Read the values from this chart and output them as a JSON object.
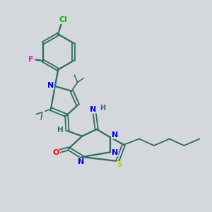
{
  "bg_color": "#d4d8dd",
  "atom_colors": {
    "C": "#2d6b5e",
    "N": "#0000ee",
    "O": "#ff0000",
    "S": "#cccc00",
    "F": "#ff00ff",
    "Cl": "#00bb00",
    "H": "#2d6b5e"
  },
  "bond_color": "#2d6b5e",
  "bond_width": 1.6,
  "font_size_atom": 8.0
}
